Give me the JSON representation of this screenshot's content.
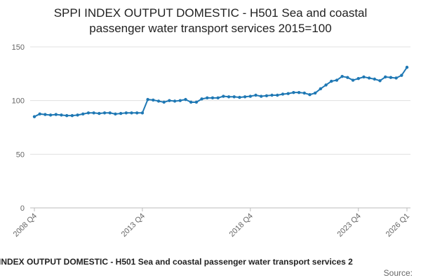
{
  "chart_data": {
    "type": "line",
    "title": [
      "SPPI INDEX OUTPUT DOMESTIC - H501 Sea and coastal",
      "passenger water transport services 2015=100"
    ],
    "footer": "INDEX OUTPUT DOMESTIC - H501 Sea and coastal passenger water transport services 2",
    "source": "Source:",
    "categories": [
      "2008 Q4",
      null,
      null,
      null,
      null,
      null,
      null,
      null,
      null,
      null,
      null,
      null,
      null,
      null,
      null,
      null,
      null,
      null,
      null,
      null,
      "2013 Q4",
      null,
      null,
      null,
      null,
      null,
      null,
      null,
      null,
      null,
      null,
      null,
      null,
      null,
      null,
      null,
      null,
      null,
      null,
      null,
      "2018 Q4",
      null,
      null,
      null,
      null,
      null,
      null,
      null,
      null,
      null,
      null,
      null,
      null,
      null,
      null,
      null,
      null,
      null,
      null,
      null,
      "2023 Q4",
      null,
      null,
      null,
      null,
      null,
      null,
      null,
      null,
      "2026 Q1"
    ],
    "values": [
      85,
      87.5,
      87,
      86.5,
      87,
      86.5,
      86,
      86,
      86.5,
      87.5,
      88.5,
      88.5,
      88,
      88.5,
      88.5,
      87.5,
      88,
      88.5,
      88.5,
      88.5,
      88.5,
      101,
      100.5,
      99.5,
      98.5,
      100,
      99.5,
      100,
      101,
      98.5,
      98.5,
      101.5,
      102.5,
      102.5,
      102.5,
      104,
      103.5,
      103.5,
      103,
      103.5,
      104,
      105,
      104,
      104.5,
      105,
      105,
      106,
      106.5,
      107.5,
      107.5,
      107,
      105.5,
      107,
      111,
      114.5,
      118,
      119,
      122.5,
      121.5,
      119,
      120.5,
      122,
      121,
      120,
      118.5,
      122,
      121.5,
      121,
      123.5,
      131
    ],
    "color": "#1f78b4",
    "ylim": [
      0,
      150
    ],
    "yticks": [
      0,
      50,
      100,
      150
    ],
    "grid": true
  }
}
